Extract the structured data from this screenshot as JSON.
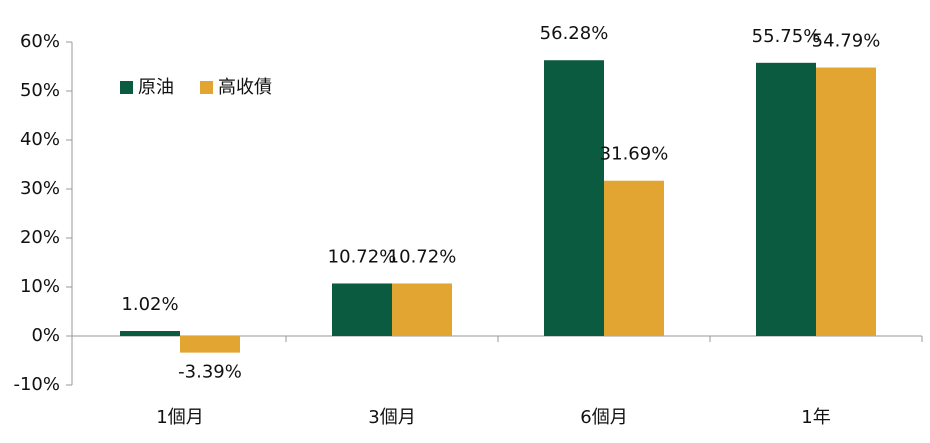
{
  "chart_data": {
    "type": "bar",
    "categories": [
      "1個月",
      "3個月",
      "6個月",
      "1年"
    ],
    "series": [
      {
        "name": "原油",
        "color": "#0b5b40",
        "values": [
          1.02,
          10.72,
          56.28,
          55.75
        ],
        "value_labels": [
          "1.02%",
          "10.72%",
          "56.28%",
          "55.75%"
        ]
      },
      {
        "name": "高收債",
        "color": "#e3a532",
        "values": [
          -3.39,
          10.72,
          31.69,
          54.79
        ],
        "value_labels": [
          "-3.39%",
          "10.72%",
          "31.69%",
          "54.79%"
        ]
      }
    ],
    "ylim": [
      -10,
      60
    ],
    "yticks": [
      {
        "value": -10,
        "label": "-10%"
      },
      {
        "value": 0,
        "label": "0%"
      },
      {
        "value": 10,
        "label": "10%"
      },
      {
        "value": 20,
        "label": "20%"
      },
      {
        "value": 30,
        "label": "30%"
      },
      {
        "value": 40,
        "label": "40%"
      },
      {
        "value": 50,
        "label": "50%"
      },
      {
        "value": 60,
        "label": "60%"
      }
    ],
    "legend": "upper-left"
  }
}
